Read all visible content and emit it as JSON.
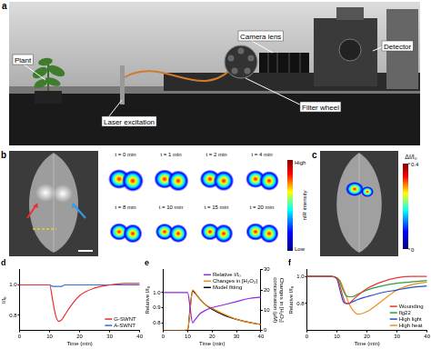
{
  "panels": {
    "a": {
      "label": "a",
      "callouts": [
        "Plant",
        "Laser excitation",
        "Camera lens",
        "Filter wheel",
        "Detector"
      ]
    },
    "b": {
      "label": "b",
      "frames": [
        "t = 0 min",
        "t = 1 min",
        "t = 2 min",
        "t = 4 min",
        "t = 8 min",
        "t = 10 min",
        "t = 15 min",
        "t = 20 min"
      ],
      "colorbar": {
        "title": "nIR intensity",
        "high": "High",
        "low": "Low"
      }
    },
    "c": {
      "label": "c",
      "colorbar": {
        "title": "ΔI/I₀",
        "range": [
          0,
          0.4
        ],
        "ticks": [
          0,
          0.4
        ]
      }
    }
  },
  "chart_data": [
    {
      "type": "line",
      "title": "d",
      "xlabel": "Time (min)",
      "ylabel": "I/I₀",
      "x": [
        0,
        2,
        4,
        6,
        8,
        10,
        11,
        12,
        13,
        14,
        15,
        17,
        20,
        25,
        30,
        35,
        40
      ],
      "series": [
        {
          "name": "G-SWNT",
          "color": "#e8312f",
          "values": [
            1,
            1,
            1,
            1,
            1,
            1,
            0.9,
            0.8,
            0.76,
            0.77,
            0.8,
            0.86,
            0.93,
            0.98,
            1.0,
            1.01,
            1.01
          ]
        },
        {
          "name": "A-SWNT",
          "color": "#2f6fd6",
          "values": [
            1,
            1,
            1,
            1,
            1,
            1,
            0.99,
            0.99,
            0.99,
            0.99,
            1.0,
            1.0,
            1.0,
            1.0,
            1.0,
            1.0,
            1.0
          ]
        }
      ],
      "xlim": [
        0,
        40
      ],
      "xticks": [
        0,
        10,
        20,
        30,
        40
      ],
      "ylim": [
        0.7,
        1.1
      ],
      "yticks": [
        0.8,
        {
          "value": 1,
          "label": "1.0"
        }
      ],
      "grid": false,
      "legend": "lower right"
    },
    {
      "type": "line",
      "title": "e",
      "xlabel": "Time (min)",
      "ylabel": "Relative I/I₀",
      "y2label": [
        "Changes in [H₂O₂]",
        "concentration (μM)"
      ],
      "x": [
        0,
        2,
        4,
        6,
        8,
        10,
        11,
        12,
        13,
        14,
        15,
        17,
        20,
        25,
        30,
        35,
        40
      ],
      "series": [
        {
          "name": "Relative I/I₀",
          "color": "#8b2be2",
          "values": [
            1,
            1,
            1,
            1,
            1,
            1,
            0.9,
            0.8,
            0.82,
            0.84,
            0.86,
            0.88,
            0.9,
            0.92,
            0.94,
            0.96,
            0.97
          ]
        },
        {
          "name": "Changes in [H₂O₂]",
          "color": "#f08c1a",
          "axis": "y2",
          "values": [
            0,
            0,
            0,
            0,
            0,
            0.5,
            10,
            20,
            19,
            17,
            15.5,
            13,
            11,
            8,
            5.5,
            4,
            3
          ]
        },
        {
          "name": "Model fitting",
          "color": "#000000",
          "axis": "y2",
          "values": [
            0,
            0,
            0,
            0,
            0,
            0,
            11,
            19.5,
            18.5,
            17,
            15.5,
            13,
            10.5,
            7.5,
            5.5,
            4,
            3
          ]
        }
      ],
      "xlim": [
        0,
        40
      ],
      "xticks": [
        0,
        10,
        20,
        30,
        40
      ],
      "ylim": [
        0.75,
        1.15
      ],
      "yticks": [
        0.8,
        0.9,
        {
          "value": 1,
          "label": "1.0"
        }
      ],
      "y2lim": [
        0,
        30
      ],
      "y2ticks": [
        0,
        10,
        20,
        30
      ],
      "grid": false,
      "legend": "upper right"
    },
    {
      "type": "line",
      "title": "f",
      "xlabel": "Time (min)",
      "ylabel": "Relative I/I₀",
      "x": [
        0,
        2,
        4,
        6,
        8,
        10,
        11,
        12,
        13,
        14,
        15,
        17,
        20,
        25,
        30,
        35,
        40
      ],
      "series": [
        {
          "name": "Wounding",
          "color": "#e53935",
          "values": [
            1,
            1,
            1,
            1,
            1,
            0.99,
            0.93,
            0.85,
            0.8,
            0.8,
            0.82,
            0.86,
            0.91,
            0.96,
            0.99,
            1,
            1
          ]
        },
        {
          "name": "flg22",
          "color": "#2e9e3e",
          "values": [
            1,
            1,
            1,
            1,
            1,
            0.99,
            0.96,
            0.9,
            0.86,
            0.85,
            0.85,
            0.87,
            0.9,
            0.93,
            0.95,
            0.96,
            0.97
          ]
        },
        {
          "name": "High light",
          "color": "#1f4fd6",
          "values": [
            1,
            1,
            1,
            1,
            1,
            0.98,
            0.9,
            0.82,
            0.8,
            0.8,
            0.81,
            0.83,
            0.85,
            0.88,
            0.9,
            0.92,
            0.93
          ]
        },
        {
          "name": "High heat",
          "color": "#f28e1c",
          "values": [
            1,
            1,
            1,
            1,
            1,
            0.99,
            0.97,
            0.92,
            0.86,
            0.8,
            0.76,
            0.72,
            0.74,
            0.82,
            0.9,
            0.94,
            0.96
          ]
        }
      ],
      "xlim": [
        0,
        40
      ],
      "xticks": [
        0,
        10,
        20,
        30,
        40
      ],
      "ylim": [
        0.6,
        1.05
      ],
      "yticks": [
        0.8,
        {
          "value": 1,
          "label": "1.0"
        }
      ],
      "grid": false,
      "legend": "lower right"
    }
  ]
}
